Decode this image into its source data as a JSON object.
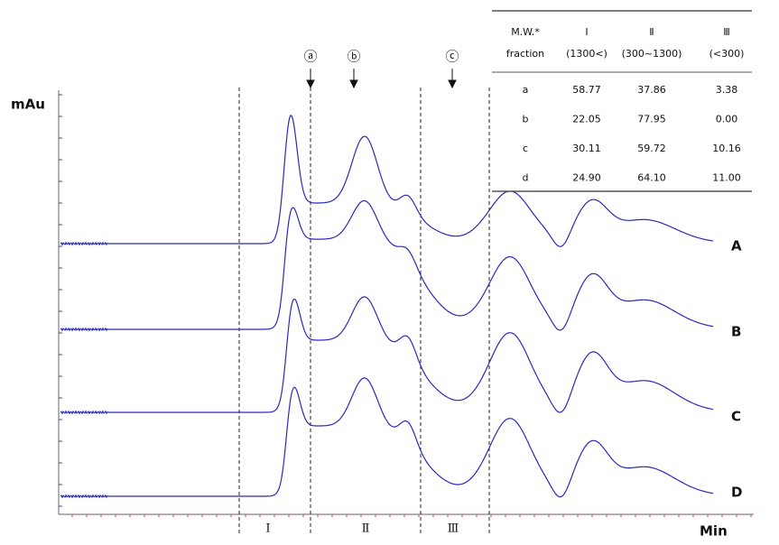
{
  "y_axis_label": "mAu",
  "x_axis_label": "Min",
  "regions": [
    "Ⅰ",
    "Ⅱ",
    "Ⅲ"
  ],
  "markers": [
    "ⓐ",
    "ⓑ",
    "ⓒ"
  ],
  "traces": [
    "A",
    "B",
    "C",
    "D"
  ],
  "table": {
    "header": [
      [
        "M.W.*",
        "fraction"
      ],
      [
        "Ⅰ",
        "(1300<)"
      ],
      [
        "Ⅱ",
        "(300~1300)"
      ],
      [
        "Ⅲ",
        "(<300)"
      ]
    ],
    "rows": [
      [
        "a",
        "58.77",
        "37.86",
        "3.38"
      ],
      [
        "b",
        "22.05",
        "77.95",
        "0.00"
      ],
      [
        "c",
        "30.11",
        "59.72",
        "10.16"
      ],
      [
        "d",
        "24.90",
        "64.10",
        "11.00"
      ]
    ]
  }
}
